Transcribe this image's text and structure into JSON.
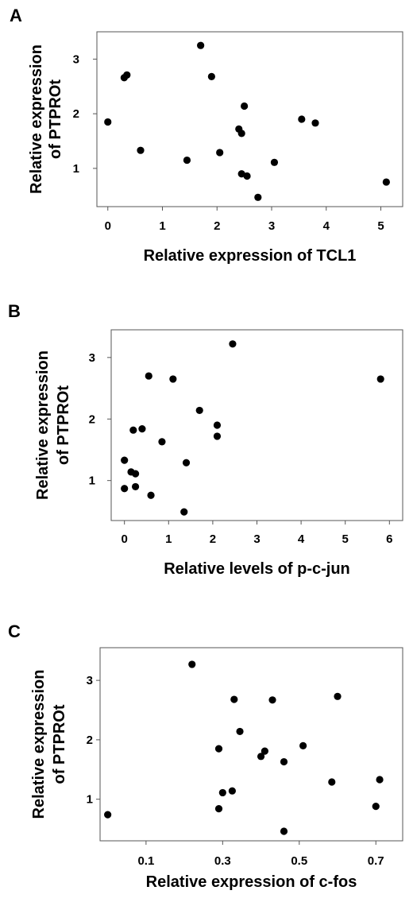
{
  "chart_data": [
    {
      "type": "scatter",
      "panel": "A",
      "xlabel": "Relative expression of TCL1",
      "ylabel": [
        "Relative expression",
        "of PTPROt"
      ],
      "xlim": [
        -0.2,
        5.4
      ],
      "ylim": [
        0.3,
        3.5
      ],
      "xticks": [
        0,
        1,
        2,
        3,
        4,
        5
      ],
      "yticks": [
        1,
        2,
        3
      ],
      "xtick_labels": [
        "0",
        "1",
        "2",
        "3",
        "4",
        "5"
      ],
      "ytick_labels": [
        "1",
        "2",
        "3"
      ],
      "points": [
        {
          "x": 0.0,
          "y": 1.85
        },
        {
          "x": 0.3,
          "y": 2.66
        },
        {
          "x": 0.35,
          "y": 2.71
        },
        {
          "x": 0.6,
          "y": 1.33
        },
        {
          "x": 1.45,
          "y": 1.15
        },
        {
          "x": 1.7,
          "y": 3.25
        },
        {
          "x": 1.9,
          "y": 2.68
        },
        {
          "x": 2.05,
          "y": 1.29
        },
        {
          "x": 2.4,
          "y": 1.72
        },
        {
          "x": 2.45,
          "y": 1.64
        },
        {
          "x": 2.5,
          "y": 2.14
        },
        {
          "x": 2.45,
          "y": 0.9
        },
        {
          "x": 2.55,
          "y": 0.86
        },
        {
          "x": 2.75,
          "y": 0.47
        },
        {
          "x": 3.05,
          "y": 1.11
        },
        {
          "x": 3.55,
          "y": 1.9
        },
        {
          "x": 3.8,
          "y": 1.83
        },
        {
          "x": 5.1,
          "y": 0.75
        }
      ]
    },
    {
      "type": "scatter",
      "panel": "B",
      "xlabel": "Relative levels of p-c-jun",
      "ylabel": [
        "Relative expression",
        "of PTPROt"
      ],
      "xlim": [
        -0.3,
        6.3
      ],
      "ylim": [
        0.35,
        3.45
      ],
      "xticks": [
        0,
        1,
        2,
        3,
        4,
        5,
        6
      ],
      "yticks": [
        1,
        2,
        3
      ],
      "xtick_labels": [
        "0",
        "1",
        "2",
        "3",
        "4",
        "5",
        "6"
      ],
      "ytick_labels": [
        "1",
        "2",
        "3"
      ],
      "points": [
        {
          "x": 0.0,
          "y": 1.33
        },
        {
          "x": 0.0,
          "y": 0.87
        },
        {
          "x": 0.15,
          "y": 1.14
        },
        {
          "x": 0.2,
          "y": 1.82
        },
        {
          "x": 0.25,
          "y": 0.9
        },
        {
          "x": 0.25,
          "y": 1.11
        },
        {
          "x": 0.4,
          "y": 1.84
        },
        {
          "x": 0.55,
          "y": 2.7
        },
        {
          "x": 0.6,
          "y": 0.76
        },
        {
          "x": 0.85,
          "y": 1.63
        },
        {
          "x": 1.1,
          "y": 2.65
        },
        {
          "x": 1.35,
          "y": 0.49
        },
        {
          "x": 1.4,
          "y": 1.29
        },
        {
          "x": 1.7,
          "y": 2.14
        },
        {
          "x": 2.1,
          "y": 1.9
        },
        {
          "x": 2.1,
          "y": 1.72
        },
        {
          "x": 2.45,
          "y": 3.22
        },
        {
          "x": 5.8,
          "y": 2.65
        }
      ]
    },
    {
      "type": "scatter",
      "panel": "C",
      "xlabel": "Relative expression of c-fos",
      "ylabel": [
        "Relative expression",
        "of PTPROt"
      ],
      "xlim": [
        -0.02,
        0.77
      ],
      "ylim": [
        0.3,
        3.55
      ],
      "xticks": [
        0.1,
        0.3,
        0.5,
        0.7
      ],
      "yticks": [
        1,
        2,
        3
      ],
      "xtick_labels": [
        "0.1",
        "0.3",
        "0.5",
        "0.7"
      ],
      "ytick_labels": [
        "1",
        "2",
        "3"
      ],
      "points": [
        {
          "x": 0.0,
          "y": 0.74
        },
        {
          "x": 0.22,
          "y": 3.27
        },
        {
          "x": 0.29,
          "y": 1.85
        },
        {
          "x": 0.29,
          "y": 0.84
        },
        {
          "x": 0.3,
          "y": 1.11
        },
        {
          "x": 0.325,
          "y": 1.14
        },
        {
          "x": 0.33,
          "y": 2.68
        },
        {
          "x": 0.345,
          "y": 2.14
        },
        {
          "x": 0.4,
          "y": 1.72
        },
        {
          "x": 0.41,
          "y": 1.81
        },
        {
          "x": 0.43,
          "y": 2.67
        },
        {
          "x": 0.46,
          "y": 1.63
        },
        {
          "x": 0.46,
          "y": 0.46
        },
        {
          "x": 0.51,
          "y": 1.9
        },
        {
          "x": 0.585,
          "y": 1.29
        },
        {
          "x": 0.6,
          "y": 2.73
        },
        {
          "x": 0.7,
          "y": 0.88
        },
        {
          "x": 0.71,
          "y": 1.33
        }
      ]
    }
  ]
}
